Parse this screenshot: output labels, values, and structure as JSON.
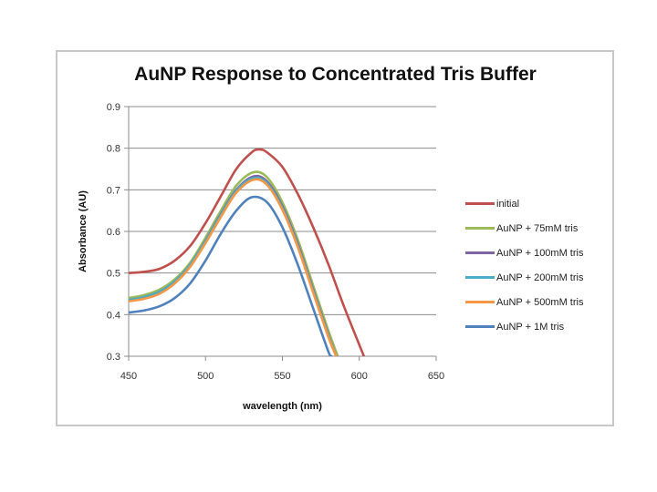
{
  "chart_data": {
    "type": "line",
    "title": "AuNP Response to Concentrated Tris Buffer",
    "xlabel": "wavelength (nm)",
    "ylabel": "Absorbance (AU)",
    "xlim": [
      450,
      650
    ],
    "ylim": [
      0.3,
      0.9
    ],
    "xticks": [
      "450",
      "500",
      "550",
      "600",
      "650"
    ],
    "yticks": [
      "0.9",
      "0.8",
      "0.7",
      "0.6",
      "0.5",
      "0.4",
      "0.3"
    ],
    "grid": "horizontal",
    "legend_position": "right",
    "series": [
      {
        "name": "initial",
        "color": "#c0504d",
        "x": [
          450,
          460,
          470,
          480,
          490,
          500,
          510,
          520,
          530,
          535,
          540,
          550,
          560,
          570,
          580,
          590,
          603
        ],
        "y": [
          0.5,
          0.503,
          0.51,
          0.53,
          0.565,
          0.62,
          0.685,
          0.75,
          0.79,
          0.797,
          0.79,
          0.755,
          0.69,
          0.61,
          0.52,
          0.42,
          0.3
        ]
      },
      {
        "name": "AuNP + 75mM tris",
        "color": "#9bbb59",
        "x": [
          450,
          460,
          470,
          480,
          490,
          500,
          510,
          520,
          531,
          540,
          550,
          560,
          570,
          580,
          586
        ],
        "y": [
          0.44,
          0.447,
          0.46,
          0.485,
          0.525,
          0.585,
          0.65,
          0.71,
          0.742,
          0.73,
          0.67,
          0.58,
          0.47,
          0.36,
          0.3
        ]
      },
      {
        "name": "AuNP + 100mM tris",
        "color": "#8064a2",
        "x": [
          450,
          460,
          470,
          480,
          490,
          500,
          510,
          520,
          531,
          540,
          550,
          560,
          570,
          580,
          585
        ],
        "y": [
          0.435,
          0.442,
          0.455,
          0.48,
          0.52,
          0.578,
          0.642,
          0.7,
          0.732,
          0.72,
          0.66,
          0.57,
          0.46,
          0.35,
          0.3
        ]
      },
      {
        "name": "AuNP + 200mM tris",
        "color": "#4bacc6",
        "x": [
          450,
          460,
          470,
          480,
          490,
          500,
          510,
          520,
          531,
          540,
          550,
          560,
          570,
          580,
          585
        ],
        "y": [
          0.435,
          0.442,
          0.455,
          0.48,
          0.52,
          0.577,
          0.64,
          0.698,
          0.728,
          0.716,
          0.656,
          0.566,
          0.457,
          0.348,
          0.3
        ]
      },
      {
        "name": "AuNP + 500mM tris",
        "color": "#f79646",
        "x": [
          450,
          460,
          470,
          480,
          490,
          500,
          510,
          520,
          531,
          540,
          550,
          560,
          570,
          580,
          585
        ],
        "y": [
          0.432,
          0.438,
          0.45,
          0.475,
          0.515,
          0.572,
          0.635,
          0.693,
          0.724,
          0.712,
          0.652,
          0.562,
          0.453,
          0.345,
          0.3
        ]
      },
      {
        "name": "AuNP + 1M tris",
        "color": "#4f81bd",
        "x": [
          450,
          460,
          470,
          480,
          490,
          500,
          510,
          520,
          530,
          540,
          550,
          560,
          570,
          580,
          582
        ],
        "y": [
          0.405,
          0.41,
          0.42,
          0.44,
          0.475,
          0.53,
          0.595,
          0.65,
          0.682,
          0.67,
          0.61,
          0.52,
          0.415,
          0.31,
          0.3
        ]
      }
    ]
  }
}
